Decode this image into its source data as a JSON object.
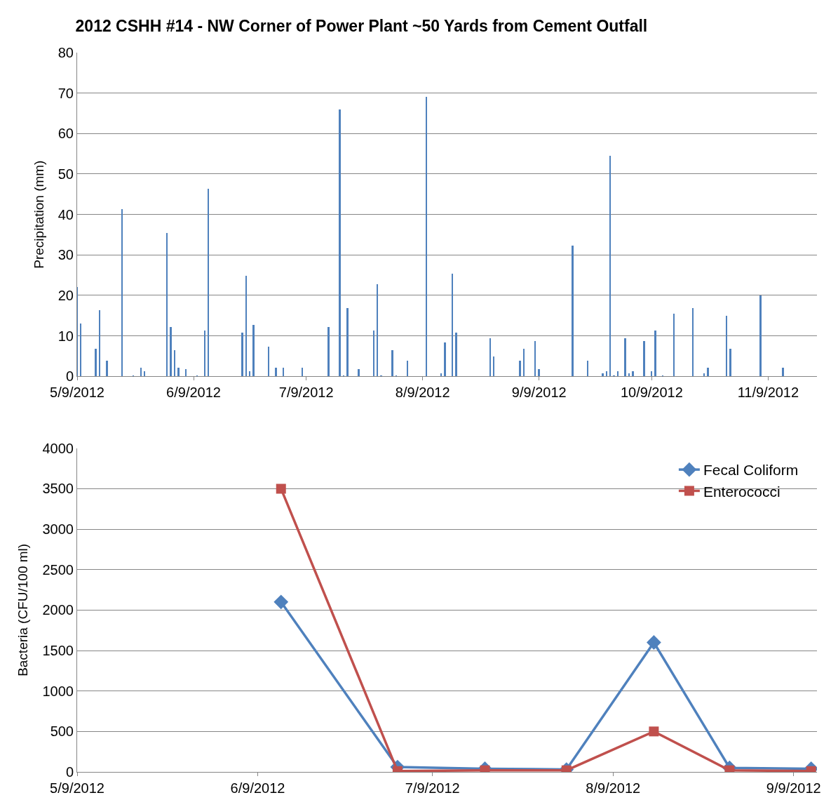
{
  "chart_data": [
    {
      "type": "bar",
      "title": "2012 CSHH #14 - NW Corner of Power Plant ~50 Yards from Cement Outfall",
      "ylabel": "Precipitation (mm)",
      "x": [
        "2012-05-09",
        "2012-05-10",
        "2012-05-14",
        "2012-05-15",
        "2012-05-17",
        "2012-05-21",
        "2012-05-24",
        "2012-05-26",
        "2012-05-27",
        "2012-06-02",
        "2012-06-03",
        "2012-06-04",
        "2012-06-05",
        "2012-06-07",
        "2012-06-10",
        "2012-06-12",
        "2012-06-13",
        "2012-06-22",
        "2012-06-23",
        "2012-06-24",
        "2012-06-25",
        "2012-06-29",
        "2012-07-01",
        "2012-07-03",
        "2012-07-08",
        "2012-07-15",
        "2012-07-18",
        "2012-07-19",
        "2012-07-20",
        "2012-07-23",
        "2012-07-27",
        "2012-07-28",
        "2012-07-29",
        "2012-08-01",
        "2012-08-02",
        "2012-08-05",
        "2012-08-10",
        "2012-08-14",
        "2012-08-15",
        "2012-08-17",
        "2012-08-18",
        "2012-08-27",
        "2012-08-28",
        "2012-09-04",
        "2012-09-05",
        "2012-09-08",
        "2012-09-09",
        "2012-09-18",
        "2012-09-22",
        "2012-09-26",
        "2012-09-27",
        "2012-09-28",
        "2012-09-29",
        "2012-09-30",
        "2012-10-02",
        "2012-10-03",
        "2012-10-04",
        "2012-10-07",
        "2012-10-09",
        "2012-10-10",
        "2012-10-12",
        "2012-10-15",
        "2012-10-20",
        "2012-10-23",
        "2012-10-24",
        "2012-10-29",
        "2012-10-30",
        "2012-11-07",
        "2012-11-13"
      ],
      "series": [
        {
          "color": "#4f81bd",
          "values": [
            22,
            13,
            6.8,
            16.3,
            3.9,
            41.3,
            0.3,
            2.2,
            1.3,
            35.4,
            12.2,
            6.4,
            2.2,
            1.7,
            0.3,
            11.3,
            46.4,
            10.8,
            24.9,
            1.3,
            12.7,
            7.3,
            2.2,
            2.2,
            2.2,
            12.2,
            66.0,
            0.3,
            16.9,
            1.7,
            11.3,
            22.7,
            0.3,
            6.4,
            0.3,
            3.9,
            69.0,
            0.8,
            8.3,
            25.4,
            10.8,
            9.4,
            4.9,
            3.9,
            6.8,
            8.8,
            1.7,
            32.3,
            3.9,
            0.8,
            1.3,
            54.5,
            0.3,
            1.3,
            9.4,
            0.8,
            1.3,
            8.8,
            1.3,
            11.3,
            0.3,
            15.4,
            16.9,
            0.8,
            2.2,
            15.0,
            6.8,
            20.0,
            2.2
          ]
        }
      ],
      "xlim": [
        "2012-05-09",
        "2012-11-22"
      ],
      "xticks": [
        {
          "value": "2012-05-09",
          "label": "5/9/2012"
        },
        {
          "value": "2012-06-09",
          "label": "6/9/2012"
        },
        {
          "value": "2012-07-09",
          "label": "7/9/2012"
        },
        {
          "value": "2012-08-09",
          "label": "8/9/2012"
        },
        {
          "value": "2012-09-09",
          "label": "9/9/2012"
        },
        {
          "value": "2012-10-09",
          "label": "10/9/2012"
        },
        {
          "value": "2012-11-09",
          "label": "11/9/2012"
        }
      ],
      "ylim": [
        0,
        80
      ],
      "yticks": [
        0,
        10,
        20,
        30,
        40,
        50,
        60,
        70,
        80
      ],
      "grid": "y",
      "legend": false
    },
    {
      "type": "line",
      "ylabel": "Bacteria (CFU/100 ml)",
      "x": [
        "2012-06-13",
        "2012-07-03",
        "2012-07-18",
        "2012-08-01",
        "2012-08-16",
        "2012-08-29",
        "2012-09-12"
      ],
      "series": [
        {
          "name": "Fecal Coliform",
          "color": "#4f81bd",
          "marker": "diamond",
          "values": [
            2100,
            60,
            40,
            30,
            1600,
            50,
            40
          ]
        },
        {
          "name": "Enterococci",
          "color": "#c0504d",
          "marker": "square",
          "values": [
            3500,
            10,
            20,
            20,
            500,
            20,
            10
          ]
        }
      ],
      "xlim": [
        "2012-05-09",
        "2012-09-13"
      ],
      "xticks": [
        {
          "value": "2012-05-09",
          "label": "5/9/2012"
        },
        {
          "value": "2012-06-09",
          "label": "6/9/2012"
        },
        {
          "value": "2012-07-09",
          "label": "7/9/2012"
        },
        {
          "value": "2012-08-09",
          "label": "8/9/2012"
        },
        {
          "value": "2012-09-09",
          "label": "9/9/2012"
        }
      ],
      "ylim": [
        0,
        4000
      ],
      "yticks": [
        0,
        500,
        1000,
        1500,
        2000,
        2500,
        3000,
        3500,
        4000
      ],
      "grid": "y",
      "legend": "top right",
      "line_style": "solid"
    }
  ]
}
